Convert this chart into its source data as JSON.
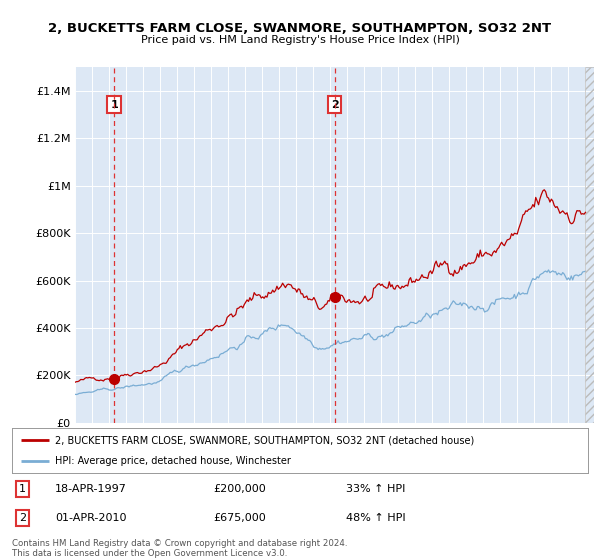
{
  "title": "2, BUCKETTS FARM CLOSE, SWANMORE, SOUTHAMPTON, SO32 2NT",
  "subtitle": "Price paid vs. HM Land Registry's House Price Index (HPI)",
  "legend_line1": "2, BUCKETTS FARM CLOSE, SWANMORE, SOUTHAMPTON, SO32 2NT (detached house)",
  "legend_line2": "HPI: Average price, detached house, Winchester",
  "sale1_date": "18-APR-1997",
  "sale1_price": "£200,000",
  "sale1_hpi": "33% ↑ HPI",
  "sale1_year": 1997.3,
  "sale2_date": "01-APR-2010",
  "sale2_price": "£675,000",
  "sale2_hpi": "48% ↑ HPI",
  "sale2_year": 2010.25,
  "footer": "Contains HM Land Registry data © Crown copyright and database right 2024.\nThis data is licensed under the Open Government Licence v3.0.",
  "bg_color": "#dde8f5",
  "fig_color": "#ffffff",
  "red_color": "#bb0000",
  "blue_color": "#7aadd4",
  "dashed_color": "#dd3333",
  "ylim": [
    0,
    1500000
  ],
  "yticks": [
    0,
    200000,
    400000,
    600000,
    800000,
    1000000,
    1200000,
    1400000
  ],
  "ytick_labels": [
    "£0",
    "£200K",
    "£400K",
    "£600K",
    "£800K",
    "£1M",
    "£1.2M",
    "£1.4M"
  ],
  "xmin": 1995,
  "xmax": 2025.5
}
